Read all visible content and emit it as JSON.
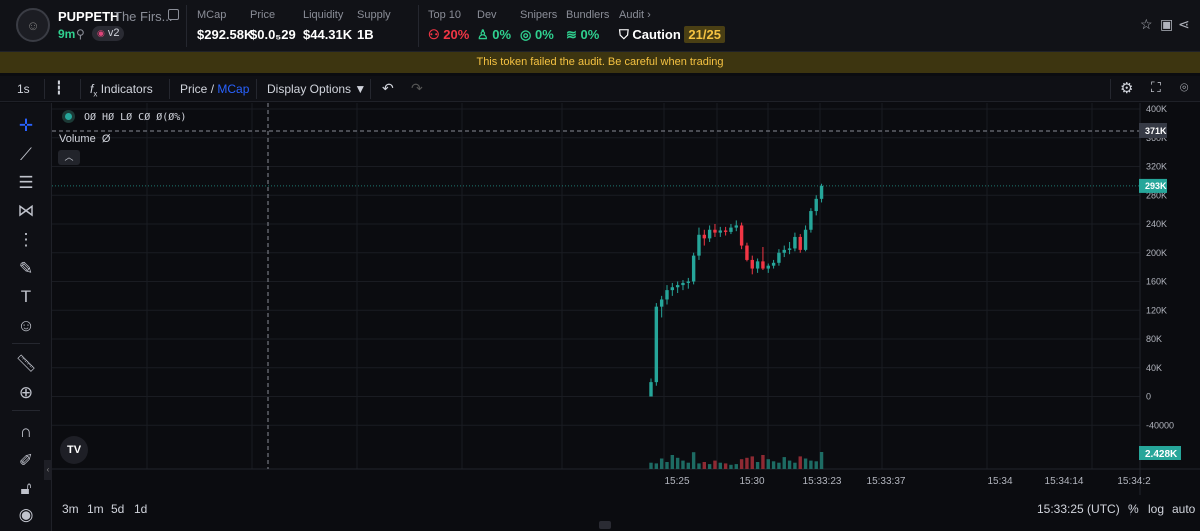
{
  "header": {
    "ticker": "PUPPETH",
    "name": "The Firs...",
    "age": "9m",
    "version": "v2",
    "stats": {
      "mcap": {
        "label": "MCap",
        "value": "$292.58K"
      },
      "price": {
        "label": "Price",
        "value": "$0.0₅29"
      },
      "liquidity": {
        "label": "Liquidity",
        "value": "$44.31K"
      },
      "supply": {
        "label": "Supply",
        "value": "1B"
      },
      "top10": {
        "label": "Top 10",
        "value": "20%"
      },
      "dev": {
        "label": "Dev",
        "value": "0%"
      },
      "snipers": {
        "label": "Snipers",
        "value": "0%"
      },
      "bundlers": {
        "label": "Bundlers",
        "value": "0%"
      },
      "audit": {
        "label": "Audit",
        "status": "Caution",
        "score": "21/25"
      }
    },
    "icons": [
      "star-icon",
      "image-icon",
      "share-icon"
    ]
  },
  "banner": {
    "text": "This token failed the audit. Be careful when trading"
  },
  "toolbar": {
    "interval": "1s",
    "indicators": "Indicators",
    "price": "Price",
    "slash": "/",
    "mcap": "MCap",
    "display_options": "Display Options"
  },
  "legend": {
    "ohlc": "OØ HØ LØ CØ Ø(Ø%)",
    "volume": "Volume",
    "volume_value": "Ø"
  },
  "bottombar": {
    "ranges": [
      "3m",
      "1m",
      "5d",
      "1d"
    ],
    "clock": "15:33:25 (UTC)",
    "percent": "%",
    "log": "log",
    "auto": "auto"
  },
  "chart_data": {
    "type": "candlestick",
    "y_axis_ticks": [
      "400K",
      "360K",
      "320K",
      "280K",
      "240K",
      "200K",
      "160K",
      "120K",
      "80K",
      "40K",
      "0",
      "-40000"
    ],
    "x_axis_ticks": [
      "15:25",
      "15:30",
      "15:33:23",
      "15:33:37",
      "15:34",
      "15:34:14",
      "15:34:2"
    ],
    "ylim": [
      -60000,
      400000
    ],
    "crosshair_label": "371K",
    "last_price_label": "293K",
    "volume_label": "2.428K",
    "up_color": "#26a69a",
    "down_color": "#f23645",
    "candles": [
      {
        "o": 0,
        "h": 25000,
        "l": 0,
        "c": 20000
      },
      {
        "o": 20000,
        "h": 130000,
        "l": 15000,
        "c": 125000
      },
      {
        "o": 125000,
        "h": 140000,
        "l": 110000,
        "c": 135000
      },
      {
        "o": 135000,
        "h": 155000,
        "l": 128000,
        "c": 148000
      },
      {
        "o": 148000,
        "h": 158000,
        "l": 140000,
        "c": 152000
      },
      {
        "o": 152000,
        "h": 160000,
        "l": 144000,
        "c": 155000
      },
      {
        "o": 155000,
        "h": 162000,
        "l": 148000,
        "c": 158000
      },
      {
        "o": 158000,
        "h": 165000,
        "l": 150000,
        "c": 160000
      },
      {
        "o": 160000,
        "h": 200000,
        "l": 156000,
        "c": 196000
      },
      {
        "o": 196000,
        "h": 235000,
        "l": 190000,
        "c": 225000
      },
      {
        "o": 225000,
        "h": 232000,
        "l": 210000,
        "c": 220000
      },
      {
        "o": 220000,
        "h": 238000,
        "l": 215000,
        "c": 232000
      },
      {
        "o": 232000,
        "h": 240000,
        "l": 222000,
        "c": 228000
      },
      {
        "o": 228000,
        "h": 236000,
        "l": 222000,
        "c": 231000
      },
      {
        "o": 231000,
        "h": 236000,
        "l": 224000,
        "c": 229000
      },
      {
        "o": 229000,
        "h": 240000,
        "l": 226000,
        "c": 235000
      },
      {
        "o": 235000,
        "h": 245000,
        "l": 230000,
        "c": 238000
      },
      {
        "o": 238000,
        "h": 242000,
        "l": 205000,
        "c": 210000
      },
      {
        "o": 210000,
        "h": 214000,
        "l": 188000,
        "c": 190000
      },
      {
        "o": 190000,
        "h": 196000,
        "l": 170000,
        "c": 178000
      },
      {
        "o": 178000,
        "h": 192000,
        "l": 172000,
        "c": 188000
      },
      {
        "o": 188000,
        "h": 208000,
        "l": 176000,
        "c": 178000
      },
      {
        "o": 178000,
        "h": 185000,
        "l": 172000,
        "c": 182000
      },
      {
        "o": 182000,
        "h": 190000,
        "l": 178000,
        "c": 186000
      },
      {
        "o": 186000,
        "h": 205000,
        "l": 182000,
        "c": 200000
      },
      {
        "o": 200000,
        "h": 210000,
        "l": 194000,
        "c": 204000
      },
      {
        "o": 204000,
        "h": 215000,
        "l": 198000,
        "c": 206000
      },
      {
        "o": 206000,
        "h": 228000,
        "l": 202000,
        "c": 222000
      },
      {
        "o": 222000,
        "h": 226000,
        "l": 200000,
        "c": 204000
      },
      {
        "o": 204000,
        "h": 238000,
        "l": 202000,
        "c": 232000
      },
      {
        "o": 232000,
        "h": 262000,
        "l": 228000,
        "c": 258000
      },
      {
        "o": 258000,
        "h": 280000,
        "l": 252000,
        "c": 275000
      },
      {
        "o": 275000,
        "h": 296000,
        "l": 270000,
        "c": 293000
      }
    ],
    "volumes": [
      900,
      800,
      1500,
      1000,
      2000,
      1600,
      1200,
      900,
      2400,
      800,
      1000,
      700,
      1200,
      900,
      800,
      600,
      700,
      1400,
      1600,
      1800,
      1000,
      2000,
      1400,
      1100,
      900,
      1700,
      1200,
      900,
      1800,
      1500,
      1200,
      1100,
      2428
    ]
  }
}
